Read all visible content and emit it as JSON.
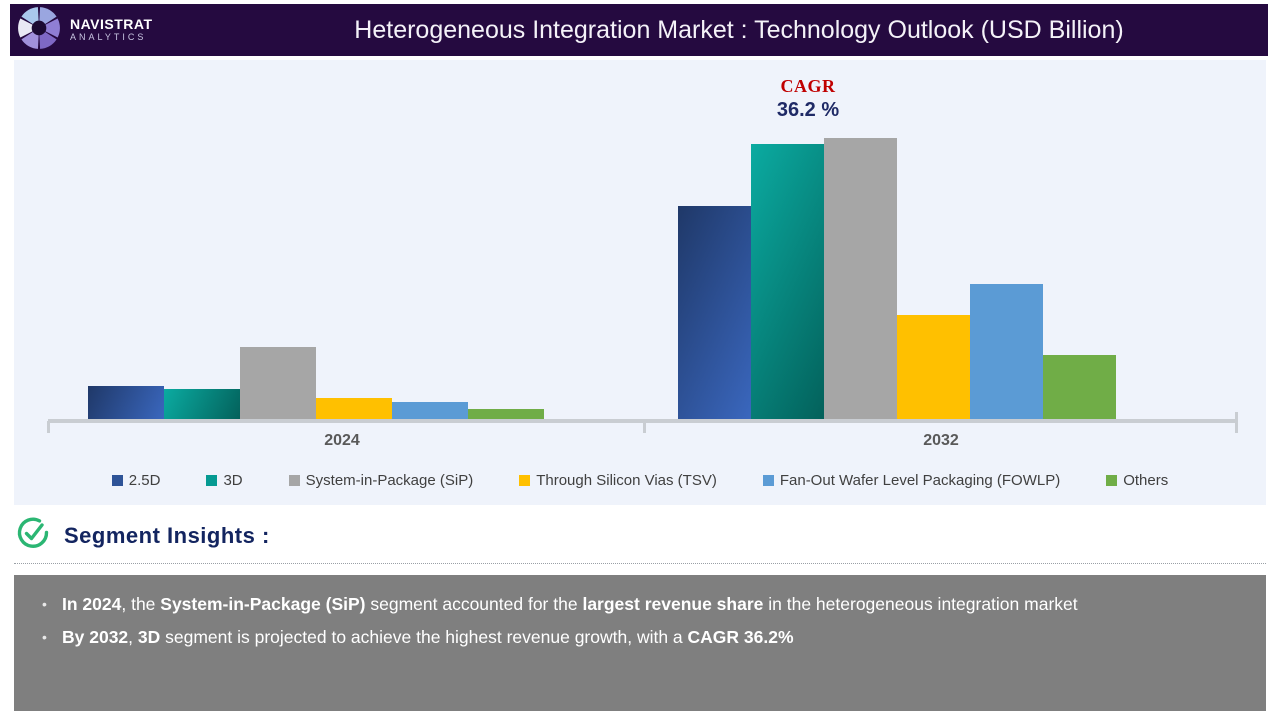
{
  "header": {
    "brand_name": "NAVISTRAT",
    "brand_sub": "ANALYTICS",
    "title": "Heterogeneous Integration Market : Technology Outlook (USD Billion)"
  },
  "chart_data": {
    "type": "bar",
    "title": "Heterogeneous Integration Market : Technology Outlook (USD Billion)",
    "categories": [
      "2024",
      "2032"
    ],
    "series": [
      {
        "name": "2.5D",
        "values": [
          33,
          213
        ],
        "fill": {
          "type": "gradient",
          "from": "#1f3868",
          "to": "#3a67be"
        },
        "legend_color": "#2e5397"
      },
      {
        "name": "3D",
        "values": [
          30,
          275
        ],
        "fill": {
          "type": "gradient",
          "from": "#0bab a1",
          "to": "#03615b"
        },
        "legend_color": "#059a92"
      },
      {
        "name": "System-in-Package (SiP)",
        "values": [
          72,
          281
        ],
        "fill": {
          "type": "solid",
          "color": "#a6a6a6"
        },
        "legend_color": "#a6a6a6"
      },
      {
        "name": "Through Silicon Vias (TSV)",
        "values": [
          21,
          104
        ],
        "fill": {
          "type": "solid",
          "color": "#ffc000"
        },
        "legend_color": "#ffc000"
      },
      {
        "name": "Fan-Out Wafer Level Packaging (FOWLP)",
        "values": [
          17,
          135
        ],
        "fill": {
          "type": "solid",
          "color": "#5b9bd5"
        },
        "legend_color": "#5b9bd5"
      },
      {
        "name": "Others",
        "values": [
          10,
          64
        ],
        "fill": {
          "type": "solid",
          "color": "#70ad47"
        },
        "legend_color": "#70ad47"
      }
    ],
    "value_axis": {
      "shown": false,
      "units": "USD Billion",
      "note": "no numeric labels or gridlines shown; values are relative estimates from bar heights"
    },
    "grid": false,
    "legend_position": "bottom",
    "annotations": [
      {
        "label": "CAGR",
        "value": "36.2 %"
      }
    ]
  },
  "insights": {
    "heading": "Segment Insights :",
    "bullets": [
      {
        "segments": [
          {
            "text": "In 2024",
            "bold": true
          },
          {
            "text": ", the ",
            "bold": false
          },
          {
            "text": "System-in-Package (SiP)",
            "bold": true
          },
          {
            "text": " segment accounted for the ",
            "bold": false
          },
          {
            "text": "largest revenue share",
            "bold": true
          },
          {
            "text": " in the heterogeneous integration market",
            "bold": false
          }
        ]
      },
      {
        "segments": [
          {
            "text": "By 2032",
            "bold": true
          },
          {
            "text": ", ",
            "bold": false
          },
          {
            "text": "3D",
            "bold": true
          },
          {
            "text": " segment is projected to achieve the highest revenue growth, with a ",
            "bold": false
          },
          {
            "text": "CAGR 36.2%",
            "bold": true
          }
        ]
      }
    ]
  },
  "colors": {
    "header_bg": "#250a40",
    "panel_bg": "#eff3fb",
    "cagr_label": "#c00000",
    "cagr_value": "#1f2a66",
    "axis": "#c9cdd2",
    "insights_box_bg": "#7f7f7f",
    "heading_text": "#132560",
    "check_icon_green": "#2bb673"
  }
}
